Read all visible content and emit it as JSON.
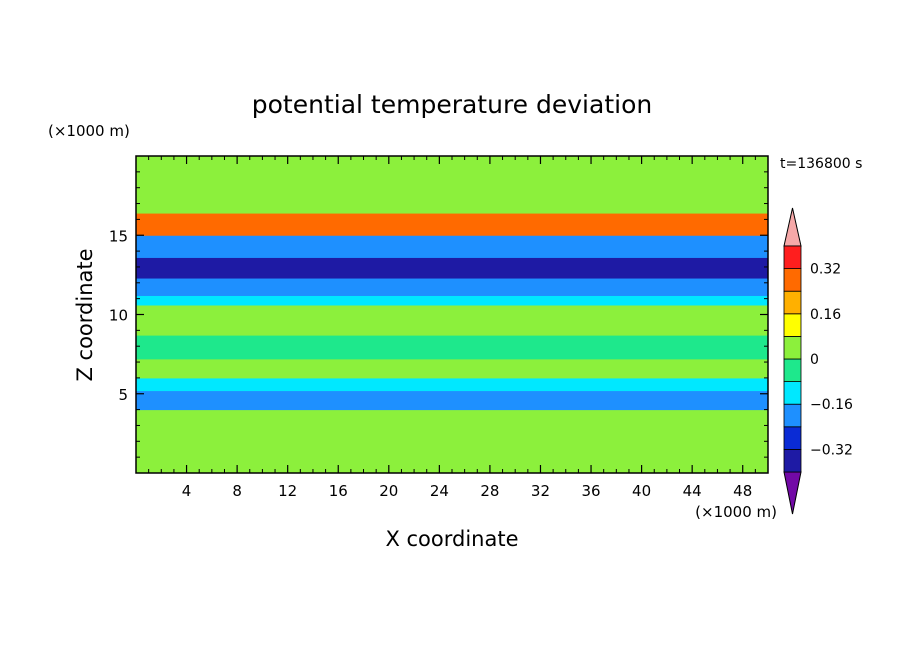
{
  "chart_data": {
    "type": "heatmap",
    "title": "potential temperature deviation",
    "time_label": "t=136800 s",
    "xlabel": "X coordinate",
    "ylabel": "Z coordinate",
    "x_unit": "(×1000 m)",
    "y_unit": "(×1000 m)",
    "xlim": [
      0,
      50
    ],
    "ylim": [
      0,
      20
    ],
    "x_ticks": [
      4,
      8,
      12,
      16,
      20,
      24,
      28,
      32,
      36,
      40,
      44,
      48
    ],
    "y_ticks": [
      5,
      10,
      15
    ],
    "grid": false,
    "legend_placement": "right",
    "colorbar": {
      "levels": [
        -0.4,
        -0.32,
        -0.24,
        -0.16,
        -0.08,
        0,
        0.08,
        0.16,
        0.24,
        0.32,
        0.4
      ],
      "tick_values": [
        0.32,
        0.16,
        0,
        -0.16,
        -0.32
      ],
      "tick_labels": [
        "0.32",
        "0.16",
        "0",
        "−0.16",
        "−0.32"
      ],
      "colors": [
        "#7209a6",
        "#1e1aa4",
        "#0a2bd5",
        "#1e90ff",
        "#00e8ff",
        "#1ee88c",
        "#8cf03c",
        "#ffff00",
        "#ffb000",
        "#ff6a00",
        "#ff1e1e",
        "#f6a8a8"
      ]
    },
    "bands": [
      {
        "z": [
          0,
          1
        ],
        "value": 0.06
      },
      {
        "z": [
          1,
          4
        ],
        "value": 0.02
      },
      {
        "z": [
          4,
          5.2
        ],
        "value": -0.2
      },
      {
        "z": [
          5.2,
          6
        ],
        "value": -0.12
      },
      {
        "z": [
          6,
          7.2
        ],
        "value": 0.04
      },
      {
        "z": [
          7.2,
          8.7
        ],
        "value": -0.08
      },
      {
        "z": [
          8.7,
          10.6
        ],
        "value": 0.03
      },
      {
        "z": [
          10.6,
          11.2
        ],
        "value": -0.12
      },
      {
        "z": [
          11.2,
          12.3
        ],
        "value": -0.2
      },
      {
        "z": [
          12.3,
          13.6
        ],
        "value": -0.36
      },
      {
        "z": [
          13.6,
          15
        ],
        "value": -0.18
      },
      {
        "z": [
          15,
          16.4
        ],
        "value": 0.24
      },
      {
        "z": [
          16.4,
          17.8
        ],
        "value": 0.05
      },
      {
        "z": [
          17.8,
          20
        ],
        "value": 0.04
      }
    ]
  }
}
